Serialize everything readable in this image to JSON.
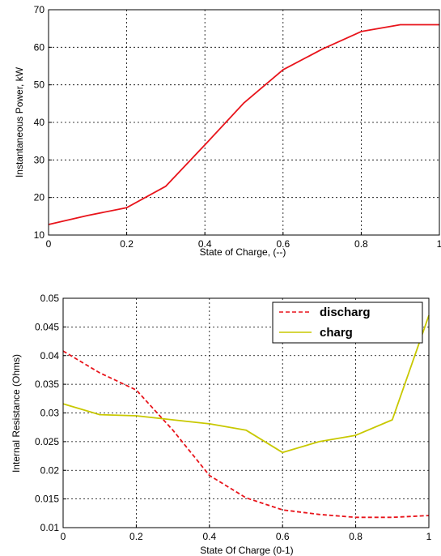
{
  "chart_data": [
    {
      "type": "line",
      "title": "",
      "xlabel": "State of Charge, (--)",
      "ylabel": "Instantaneous Power, kW",
      "xlim": [
        0,
        1
      ],
      "ylim": [
        10,
        70
      ],
      "grid": true,
      "xticks": [
        "0",
        "0.2",
        "0.4",
        "0.6",
        "0.8",
        "1"
      ],
      "yticks": [
        "10",
        "20",
        "30",
        "40",
        "50",
        "60",
        "70"
      ],
      "series": [
        {
          "name": "",
          "color": "#e8141b",
          "dash": "solid",
          "x": [
            0,
            0.1,
            0.2,
            0.3,
            0.4,
            0.5,
            0.6,
            0.7,
            0.8,
            0.9,
            1.0
          ],
          "y": [
            12.8,
            15.2,
            17.3,
            23.0,
            34.0,
            45.2,
            54.0,
            59.5,
            64.2,
            66.0,
            66.0
          ]
        }
      ]
    },
    {
      "type": "line",
      "title": "",
      "xlabel": "State Of Charge (0-1)",
      "ylabel": "Internal Resistance (Ohms)",
      "xlim": [
        0,
        1
      ],
      "ylim": [
        0.01,
        0.05
      ],
      "grid": true,
      "legend_position": "top-right",
      "xticks": [
        "0",
        "0.2",
        "0.4",
        "0.6",
        "0.8",
        "1"
      ],
      "yticks": [
        "0.01",
        "0.015",
        "0.02",
        "0.025",
        "0.03",
        "0.035",
        "0.04",
        "0.045",
        "0.05"
      ],
      "series": [
        {
          "name": "discharg",
          "color": "#e8141b",
          "dash": "dashed",
          "x": [
            0,
            0.1,
            0.2,
            0.3,
            0.4,
            0.5,
            0.6,
            0.7,
            0.8,
            0.9,
            1.0
          ],
          "y": [
            0.0408,
            0.037,
            0.034,
            0.027,
            0.0191,
            0.0152,
            0.0131,
            0.0123,
            0.0118,
            0.0118,
            0.0121
          ]
        },
        {
          "name": "charg",
          "color": "#c8c800",
          "dash": "solid",
          "x": [
            0,
            0.1,
            0.2,
            0.3,
            0.4,
            0.5,
            0.6,
            0.7,
            0.8,
            0.9,
            1.0
          ],
          "y": [
            0.0316,
            0.0297,
            0.0295,
            0.0288,
            0.0281,
            0.027,
            0.0231,
            0.025,
            0.0261,
            0.0288,
            0.047
          ]
        }
      ]
    }
  ]
}
